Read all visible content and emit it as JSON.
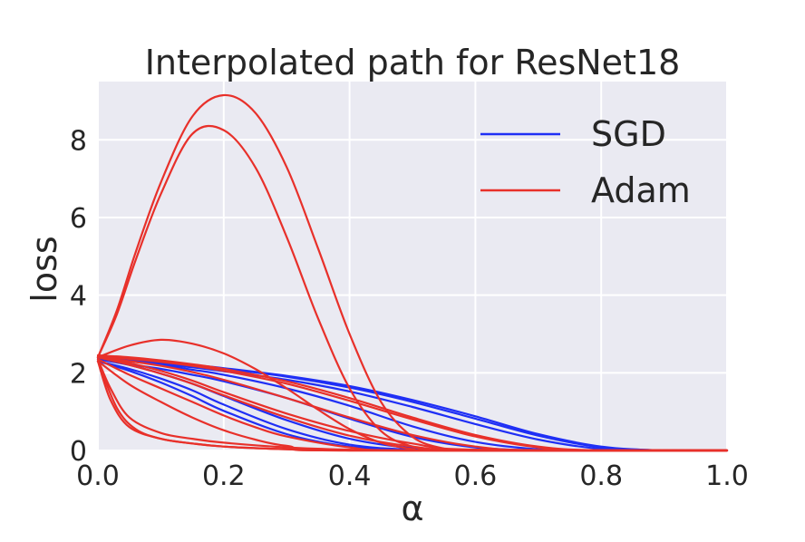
{
  "chart_data": {
    "type": "line",
    "title": "Interpolated path for ResNet18",
    "xlabel": "α",
    "ylabel": "loss",
    "xlim": [
      0.0,
      1.0
    ],
    "ylim": [
      0.0,
      9.5
    ],
    "xticks": [
      "0.0",
      "0.2",
      "0.4",
      "0.6",
      "0.8",
      "1.0"
    ],
    "xtick_values": [
      0.0,
      0.2,
      0.4,
      0.6,
      0.8,
      1.0
    ],
    "yticks": [
      "0",
      "2",
      "4",
      "6",
      "8"
    ],
    "ytick_values": [
      0,
      2,
      4,
      6,
      8
    ],
    "grid": true,
    "legend": {
      "placement": "top-right",
      "entries": [
        {
          "label": "SGD",
          "color": "#1f2ff5"
        },
        {
          "label": "Adam",
          "color": "#e8302a"
        }
      ]
    },
    "series": [
      {
        "name": "SGD",
        "color": "#1f2ff5",
        "x": [
          0,
          0.05,
          0.1,
          0.15,
          0.2,
          0.3,
          0.4,
          0.5,
          0.6,
          0.7,
          0.8,
          0.9,
          1.0
        ],
        "y": [
          2.4,
          2.33,
          2.26,
          2.18,
          2.1,
          1.9,
          1.62,
          1.25,
          0.82,
          0.38,
          0.08,
          0,
          0
        ]
      },
      {
        "name": "SGD",
        "color": "#1f2ff5",
        "x": [
          0,
          0.05,
          0.1,
          0.15,
          0.2,
          0.3,
          0.4,
          0.5,
          0.6,
          0.7,
          0.8,
          0.9,
          1.0
        ],
        "y": [
          2.42,
          2.36,
          2.28,
          2.2,
          2.12,
          1.92,
          1.66,
          1.3,
          0.88,
          0.42,
          0.1,
          0,
          0
        ]
      },
      {
        "name": "SGD",
        "color": "#1f2ff5",
        "x": [
          0,
          0.05,
          0.1,
          0.15,
          0.2,
          0.3,
          0.4,
          0.5,
          0.6,
          0.7,
          0.8,
          0.9,
          1.0
        ],
        "y": [
          2.38,
          2.3,
          2.22,
          2.14,
          2.04,
          1.82,
          1.52,
          1.12,
          0.68,
          0.28,
          0.04,
          0,
          0
        ]
      },
      {
        "name": "SGD",
        "color": "#1f2ff5",
        "x": [
          0,
          0.05,
          0.1,
          0.15,
          0.2,
          0.3,
          0.4,
          0.5,
          0.6,
          0.7,
          0.8,
          0.9,
          1.0
        ],
        "y": [
          2.4,
          2.3,
          2.2,
          2.08,
          1.95,
          1.6,
          1.15,
          0.62,
          0.22,
          0.03,
          0,
          0,
          0
        ]
      },
      {
        "name": "SGD",
        "color": "#1f2ff5",
        "x": [
          0,
          0.05,
          0.1,
          0.15,
          0.2,
          0.3,
          0.4,
          0.5,
          0.6,
          0.7,
          0.8,
          0.9,
          1.0
        ],
        "y": [
          2.35,
          2.22,
          2.1,
          1.95,
          1.78,
          1.35,
          0.82,
          0.35,
          0.08,
          0,
          0,
          0,
          0
        ]
      },
      {
        "name": "SGD",
        "color": "#1f2ff5",
        "x": [
          0,
          0.05,
          0.1,
          0.15,
          0.2,
          0.3,
          0.4,
          0.5,
          0.6,
          0.7,
          0.8,
          0.9,
          1.0
        ],
        "y": [
          2.3,
          2.1,
          1.85,
          1.55,
          1.18,
          0.55,
          0.15,
          0.02,
          0,
          0,
          0,
          0,
          0
        ]
      },
      {
        "name": "SGD",
        "color": "#1f2ff5",
        "x": [
          0,
          0.05,
          0.1,
          0.15,
          0.2,
          0.3,
          0.4,
          0.5,
          0.6,
          0.7,
          0.8,
          0.9,
          1.0
        ],
        "y": [
          2.35,
          2.2,
          1.98,
          1.72,
          1.4,
          0.78,
          0.3,
          0.06,
          0,
          0,
          0,
          0,
          0
        ]
      },
      {
        "name": "SGD",
        "color": "#1f2ff5",
        "x": [
          0,
          0.05,
          0.1,
          0.15,
          0.2,
          0.3,
          0.4,
          0.5,
          0.6,
          0.7,
          0.8,
          0.9,
          1.0
        ],
        "y": [
          2.3,
          2.05,
          1.75,
          1.4,
          1.02,
          0.42,
          0.1,
          0.01,
          0,
          0,
          0,
          0,
          0
        ]
      },
      {
        "name": "Adam",
        "color": "#e8302a",
        "x": [
          0,
          0.03,
          0.06,
          0.1,
          0.15,
          0.2,
          0.25,
          0.3,
          0.35,
          0.4,
          0.45,
          0.5,
          0.55,
          0.6,
          1.0
        ],
        "y": [
          2.4,
          3.6,
          5.1,
          6.9,
          8.6,
          9.15,
          8.7,
          7.3,
          5.2,
          3.0,
          1.25,
          0.35,
          0.05,
          0,
          0
        ]
      },
      {
        "name": "Adam",
        "color": "#e8302a",
        "x": [
          0,
          0.03,
          0.06,
          0.1,
          0.15,
          0.2,
          0.25,
          0.3,
          0.35,
          0.4,
          0.45,
          0.5,
          0.55,
          0.6,
          1.0
        ],
        "y": [
          2.4,
          3.5,
          4.9,
          6.6,
          8.15,
          8.25,
          7.3,
          5.5,
          3.4,
          1.6,
          0.5,
          0.1,
          0,
          0,
          0
        ]
      },
      {
        "name": "Adam",
        "color": "#e8302a",
        "x": [
          0,
          0.05,
          0.1,
          0.15,
          0.2,
          0.25,
          0.3,
          0.35,
          0.4,
          0.45,
          0.5,
          0.55,
          1.0
        ],
        "y": [
          2.4,
          2.7,
          2.85,
          2.75,
          2.5,
          2.1,
          1.6,
          1.05,
          0.55,
          0.2,
          0.04,
          0,
          0
        ]
      },
      {
        "name": "Adam",
        "color": "#e8302a",
        "x": [
          0,
          0.05,
          0.1,
          0.15,
          0.2,
          0.3,
          0.4,
          0.5,
          0.6,
          0.7,
          0.8,
          1.0
        ],
        "y": [
          2.45,
          2.4,
          2.32,
          2.22,
          2.1,
          1.78,
          1.35,
          0.85,
          0.4,
          0.1,
          0,
          0
        ]
      },
      {
        "name": "Adam",
        "color": "#e8302a",
        "x": [
          0,
          0.05,
          0.1,
          0.15,
          0.2,
          0.3,
          0.4,
          0.5,
          0.6,
          0.7,
          0.8,
          1.0
        ],
        "y": [
          2.42,
          2.36,
          2.28,
          2.18,
          2.05,
          1.72,
          1.28,
          0.8,
          0.36,
          0.08,
          0,
          0
        ]
      },
      {
        "name": "Adam",
        "color": "#e8302a",
        "x": [
          0,
          0.05,
          0.1,
          0.15,
          0.2,
          0.3,
          0.4,
          0.5,
          0.6,
          0.7,
          1.0
        ],
        "y": [
          2.4,
          2.3,
          2.18,
          2.02,
          1.82,
          1.35,
          0.85,
          0.4,
          0.1,
          0,
          0
        ]
      },
      {
        "name": "Adam",
        "color": "#e8302a",
        "x": [
          0,
          0.05,
          0.1,
          0.15,
          0.2,
          0.3,
          0.4,
          0.5,
          0.6,
          1.0
        ],
        "y": [
          2.4,
          2.2,
          1.98,
          1.72,
          1.42,
          0.85,
          0.38,
          0.1,
          0,
          0
        ]
      },
      {
        "name": "Adam",
        "color": "#e8302a",
        "x": [
          0,
          0.05,
          0.1,
          0.15,
          0.2,
          0.25,
          0.3,
          0.4,
          0.5,
          1.0
        ],
        "y": [
          2.35,
          1.95,
          1.6,
          1.25,
          0.9,
          0.6,
          0.36,
          0.08,
          0,
          0
        ]
      },
      {
        "name": "Adam",
        "color": "#e8302a",
        "x": [
          0,
          0.05,
          0.1,
          0.15,
          0.2,
          0.25,
          0.3,
          0.4,
          1.0
        ],
        "y": [
          2.3,
          1.7,
          1.25,
          0.85,
          0.52,
          0.28,
          0.12,
          0,
          0
        ]
      },
      {
        "name": "Adam",
        "color": "#e8302a",
        "x": [
          0,
          0.02,
          0.05,
          0.1,
          0.15,
          0.2,
          0.3,
          0.4,
          1.0
        ],
        "y": [
          2.3,
          1.3,
          0.6,
          0.3,
          0.18,
          0.1,
          0.03,
          0,
          0
        ]
      },
      {
        "name": "Adam",
        "color": "#e8302a",
        "x": [
          0,
          0.02,
          0.05,
          0.1,
          0.15,
          0.2,
          0.3,
          0.4,
          0.5,
          1.0
        ],
        "y": [
          2.35,
          1.6,
          0.85,
          0.45,
          0.3,
          0.2,
          0.08,
          0.02,
          0,
          0
        ]
      },
      {
        "name": "Adam",
        "color": "#e8302a",
        "x": [
          0,
          0.03,
          0.06,
          0.1,
          0.15,
          0.2,
          0.3,
          0.4,
          1.0
        ],
        "y": [
          2.3,
          1.1,
          0.55,
          0.3,
          0.18,
          0.1,
          0.03,
          0,
          0
        ]
      },
      {
        "name": "Adam",
        "color": "#e8302a",
        "x": [
          0,
          0.05,
          0.1,
          0.15,
          0.2,
          0.3,
          0.4,
          0.5,
          0.6,
          1.0
        ],
        "y": [
          2.4,
          2.25,
          2.05,
          1.8,
          1.5,
          0.95,
          0.5,
          0.18,
          0.02,
          0
        ]
      }
    ]
  }
}
